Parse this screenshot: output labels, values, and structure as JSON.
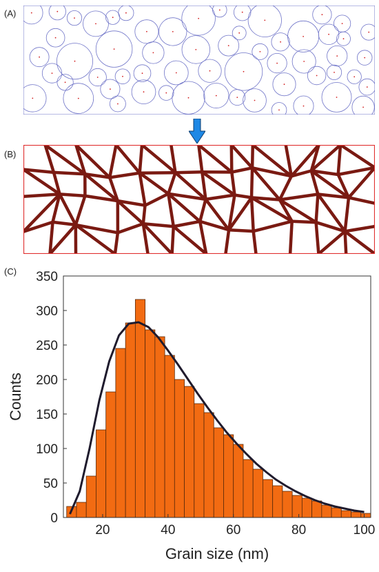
{
  "panels": {
    "a_label": "(A)",
    "b_label": "(B)",
    "c_label": "(C)"
  },
  "colors": {
    "circle_stroke": "#6f74c8",
    "seed_dot": "#d22020",
    "voronoi_edge": "#7a7a7a",
    "grain_boundary": "#7a1a12",
    "panel_b_border": "#e03030",
    "arrow_fill": "#1e88e5",
    "bar_fill": "#f26b12",
    "bar_edge": "#5a2a0a",
    "fit_curve": "#1f1b2d"
  },
  "chart_data": {
    "type": "bar",
    "xlabel": "Grain size (nm)",
    "ylabel": "Counts",
    "xlim": [
      8,
      102
    ],
    "ylim": [
      0,
      350
    ],
    "xticks": [
      20,
      40,
      60,
      80,
      100
    ],
    "yticks": [
      0,
      50,
      100,
      150,
      200,
      250,
      300,
      350
    ],
    "bin_width": 3,
    "bin_starts": [
      9,
      12,
      15,
      18,
      21,
      24,
      27,
      30,
      33,
      36,
      39,
      42,
      45,
      48,
      51,
      54,
      57,
      60,
      63,
      66,
      69,
      72,
      75,
      78,
      81,
      84,
      87,
      90,
      93,
      96,
      99
    ],
    "counts": [
      16,
      22,
      60,
      127,
      182,
      245,
      282,
      316,
      272,
      262,
      235,
      200,
      190,
      165,
      152,
      130,
      120,
      106,
      84,
      70,
      55,
      46,
      38,
      32,
      28,
      24,
      18,
      14,
      10,
      8,
      6
    ],
    "fit_curve": {
      "type": "line",
      "x": [
        10,
        13,
        16,
        19,
        22,
        25,
        28,
        31,
        34,
        37,
        40,
        43,
        46,
        49,
        52,
        55,
        58,
        61,
        64,
        67,
        70,
        73,
        76,
        79,
        82,
        85,
        88,
        91,
        94,
        97,
        100
      ],
      "y": [
        5,
        38,
        100,
        170,
        226,
        264,
        281,
        283,
        276,
        261,
        242,
        222,
        201,
        180,
        160,
        141,
        123,
        107,
        92,
        78,
        66,
        55,
        46,
        38,
        31,
        25,
        20,
        16,
        13,
        10,
        8
      ]
    }
  }
}
